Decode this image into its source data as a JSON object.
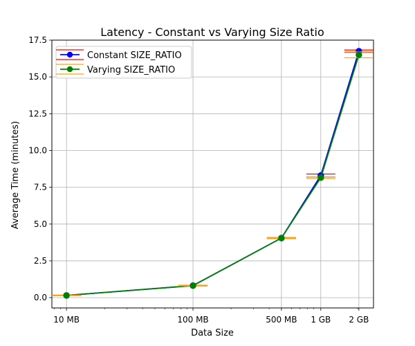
{
  "chart_data": {
    "type": "line",
    "title": "Latency - Constant vs Varying Size Ratio",
    "xlabel": "Data Size",
    "ylabel": "Average Time (minutes)",
    "x_scale": "log",
    "x_values_mb": [
      10,
      100,
      500,
      1024,
      2048
    ],
    "x_tick_labels": [
      "10 MB",
      "100 MB",
      "500 MB",
      "1 GB",
      "2 GB"
    ],
    "ylim": [
      -0.7,
      17.5
    ],
    "y_ticks": [
      0.0,
      2.5,
      5.0,
      7.5,
      10.0,
      12.5,
      15.0,
      17.5
    ],
    "y_tick_labels": [
      "0.0",
      "2.5",
      "5.0",
      "7.5",
      "10.0",
      "12.5",
      "15.0",
      "17.5"
    ],
    "grid": true,
    "legend_position": "upper-left",
    "series": [
      {
        "name": "Constant SIZE_RATIO",
        "color": "#0000ff",
        "errorbar_color": "#ff0000",
        "values": [
          0.15,
          0.82,
          4.05,
          8.3,
          16.75
        ],
        "errors": [
          0.02,
          0.02,
          0.03,
          0.1,
          0.08
        ]
      },
      {
        "name": "Varying SIZE_RATIO",
        "color": "#008000",
        "errorbar_color": "#ffa500",
        "values": [
          0.15,
          0.82,
          4.05,
          8.15,
          16.5
        ],
        "errors": [
          0.02,
          0.02,
          0.03,
          0.05,
          0.2
        ]
      }
    ]
  }
}
